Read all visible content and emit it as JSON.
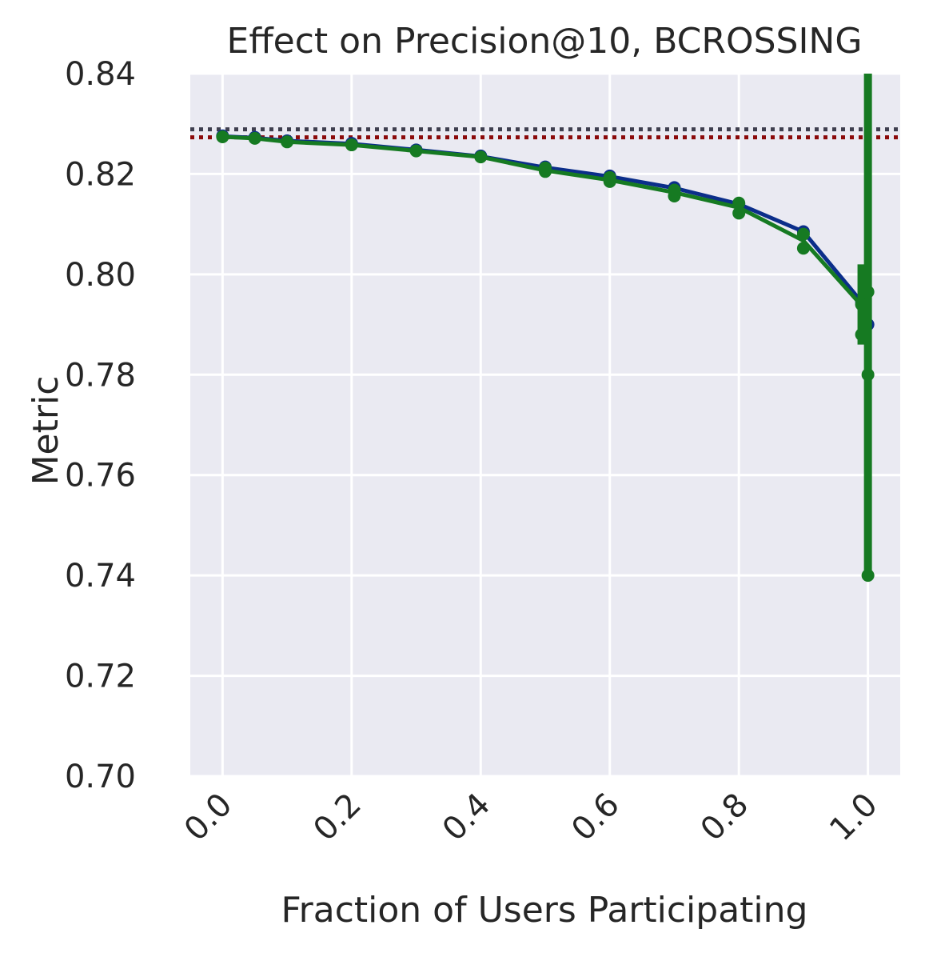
{
  "chart_data": {
    "type": "line",
    "title": "Effect on Precision@10, BCROSSING",
    "xlabel": "Fraction of Users Participating",
    "ylabel": "Metric",
    "xlim": [
      -0.05,
      1.05
    ],
    "ylim": [
      0.7,
      0.84
    ],
    "xticks": [
      "0.0",
      "0.2",
      "0.4",
      "0.6",
      "0.8",
      "1.0"
    ],
    "yticks": [
      "0.70",
      "0.72",
      "0.74",
      "0.76",
      "0.78",
      "0.80",
      "0.82",
      "0.84"
    ],
    "grid": true,
    "background": "#eaeaf2",
    "reference_lines": [
      {
        "y": 0.8289,
        "color": "#3f3f4f",
        "style": "dotted"
      },
      {
        "y": 0.8273,
        "color": "#8b0a0a",
        "style": "dotted"
      }
    ],
    "series": [
      {
        "color": "#0b2e8a",
        "x": [
          0.0,
          0.05,
          0.1,
          0.2,
          0.3,
          0.4,
          0.5,
          0.6,
          0.7,
          0.8,
          0.9,
          0.99,
          1.0
        ],
        "y": [
          0.8275,
          0.8272,
          0.8266,
          0.826,
          0.8248,
          0.8235,
          0.8213,
          0.8195,
          0.8172,
          0.814,
          0.8085,
          0.7945,
          0.79
        ],
        "scatter": [
          [
            0.0,
            0.8276
          ],
          [
            0.05,
            0.8273
          ],
          [
            0.1,
            0.8266
          ],
          [
            0.2,
            0.8261
          ],
          [
            0.3,
            0.8248
          ],
          [
            0.4,
            0.8236
          ],
          [
            0.5,
            0.8214
          ],
          [
            0.6,
            0.8196
          ],
          [
            0.7,
            0.8173
          ],
          [
            0.8,
            0.814
          ],
          [
            0.9,
            0.8085
          ],
          [
            0.99,
            0.7945
          ],
          [
            1.0,
            0.79
          ]
        ]
      },
      {
        "color": "#167a22",
        "x": [
          0.0,
          0.05,
          0.1,
          0.2,
          0.3,
          0.4,
          0.5,
          0.6,
          0.7,
          0.8,
          0.9,
          0.99,
          1.0
        ],
        "y": [
          0.8274,
          0.8271,
          0.8264,
          0.8258,
          0.8246,
          0.8234,
          0.8207,
          0.8188,
          0.8163,
          0.8133,
          0.8067,
          0.7938,
          0.79
        ],
        "scatter": [
          [
            0.0,
            0.8274
          ],
          [
            0.05,
            0.8271
          ],
          [
            0.1,
            0.8264
          ],
          [
            0.2,
            0.8258
          ],
          [
            0.3,
            0.8246
          ],
          [
            0.4,
            0.8234
          ],
          [
            0.5,
            0.8205
          ],
          [
            0.5,
            0.8212
          ],
          [
            0.6,
            0.8185
          ],
          [
            0.6,
            0.8193
          ],
          [
            0.7,
            0.8156
          ],
          [
            0.7,
            0.8168
          ],
          [
            0.8,
            0.8122
          ],
          [
            0.8,
            0.8142
          ],
          [
            0.9,
            0.8052
          ],
          [
            0.9,
            0.808
          ],
          [
            0.99,
            0.794
          ],
          [
            0.99,
            0.788
          ],
          [
            1.0,
            0.7965
          ],
          [
            1.0,
            0.78
          ],
          [
            1.0,
            0.74
          ]
        ],
        "error_bars": [
          {
            "x": 0.99,
            "low": 0.786,
            "high": 0.802
          },
          {
            "x": 1.0,
            "low": 0.74,
            "high": 0.84
          }
        ]
      }
    ]
  }
}
